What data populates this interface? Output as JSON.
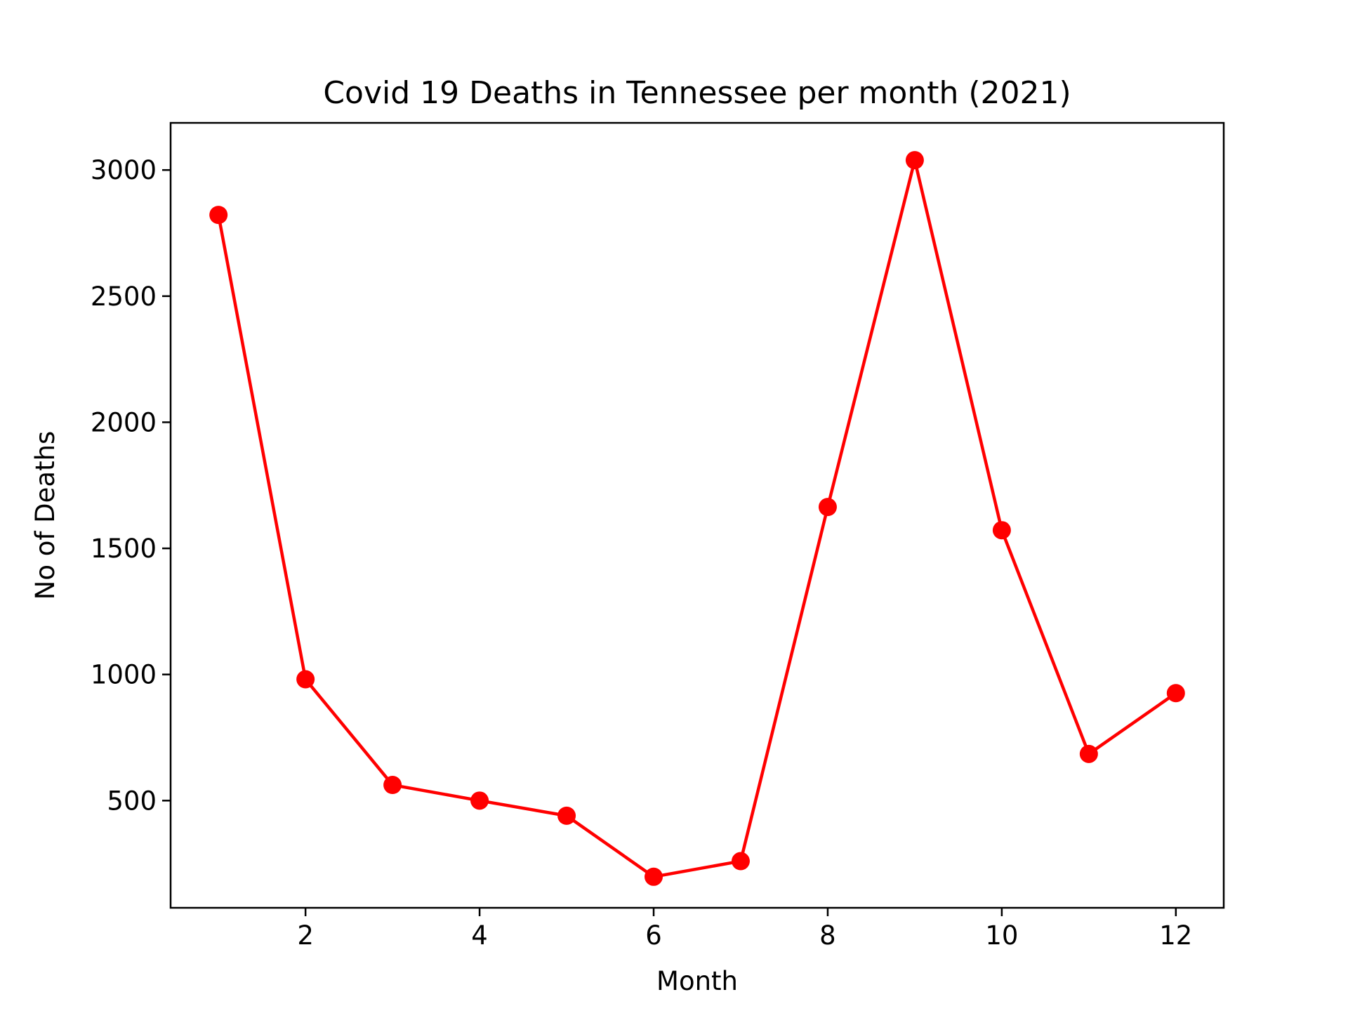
{
  "chart_data": {
    "type": "line",
    "title": "Covid 19 Deaths in Tennessee per month (2021)",
    "xlabel": "Month",
    "ylabel": "No of Deaths",
    "x": [
      1,
      2,
      3,
      4,
      5,
      6,
      7,
      8,
      9,
      10,
      11,
      12
    ],
    "series": [
      {
        "values": [
          2822,
          981,
          562,
          500,
          440,
          198,
          260,
          1664,
          3039,
          1572,
          685,
          926
        ],
        "color": "#ff0000",
        "marker": "circle"
      }
    ],
    "xlim": [
      0.45,
      12.55
    ],
    "ylim": [
      75,
      3187
    ],
    "xticks": [
      2,
      4,
      6,
      8,
      10,
      12
    ],
    "yticks": [
      500,
      1000,
      1500,
      2000,
      2500,
      3000
    ],
    "grid": false,
    "legend": false
  }
}
